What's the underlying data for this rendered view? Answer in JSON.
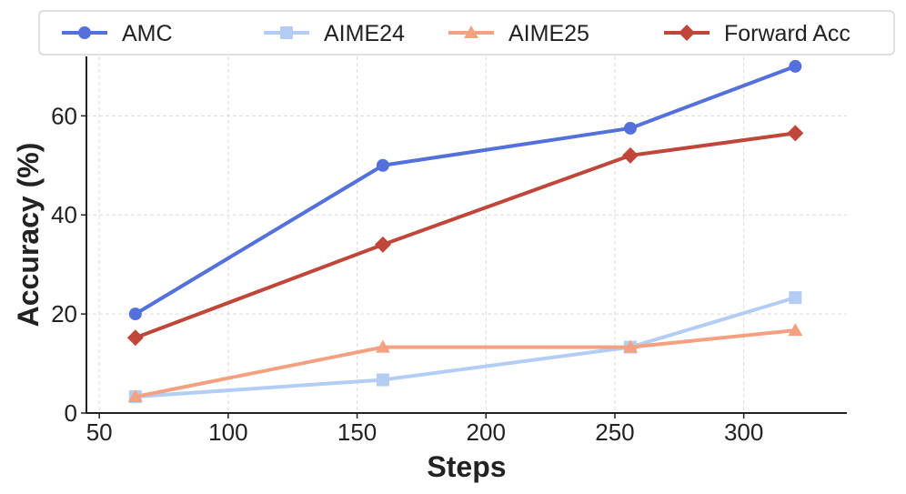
{
  "chart_data": {
    "type": "line",
    "xlabel": "Steps",
    "ylabel": "Accuracy (%)",
    "xlim": [
      45,
      340
    ],
    "ylim": [
      0,
      72
    ],
    "xticks": [
      50,
      100,
      150,
      200,
      250,
      300
    ],
    "yticks": [
      0,
      20,
      40,
      60
    ],
    "grid": true,
    "legend_position": "top",
    "series": [
      {
        "name": "AMC",
        "color": "#5470dc",
        "marker": "circle",
        "x": [
          64,
          160,
          256,
          320
        ],
        "y": [
          20.0,
          50.0,
          57.5,
          70.0
        ]
      },
      {
        "name": "AIME24",
        "color": "#b4cdf5",
        "marker": "square",
        "x": [
          64,
          160,
          256,
          320
        ],
        "y": [
          3.3,
          6.7,
          13.3,
          23.3
        ]
      },
      {
        "name": "AIME25",
        "color": "#f4a180",
        "marker": "triangle",
        "x": [
          64,
          160,
          256,
          320
        ],
        "y": [
          3.3,
          13.3,
          13.3,
          16.7
        ]
      },
      {
        "name": "Forward Acc",
        "color": "#c0463a",
        "marker": "diamond",
        "x": [
          64,
          160,
          256,
          320
        ],
        "y": [
          15.2,
          34.0,
          52.0,
          56.5
        ]
      }
    ]
  }
}
